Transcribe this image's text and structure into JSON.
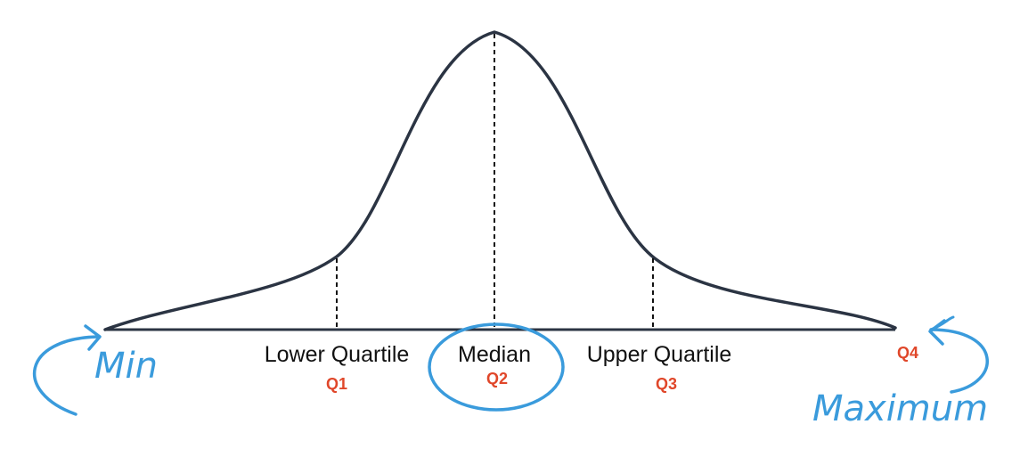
{
  "labels": {
    "lower_quartile": "Lower Quartile",
    "median": "Median",
    "upper_quartile": "Upper Quartile",
    "q1": "Q1",
    "q2": "Q2",
    "q3": "Q3",
    "q4": "Q4",
    "min": "Min",
    "maximum": "Maximum"
  },
  "colors": {
    "curve": "#2b3443",
    "baseline": "#2b3443",
    "quartile_text": "#111111",
    "q_codes": "#e0472a",
    "annotation": "#3a9bdc"
  }
}
